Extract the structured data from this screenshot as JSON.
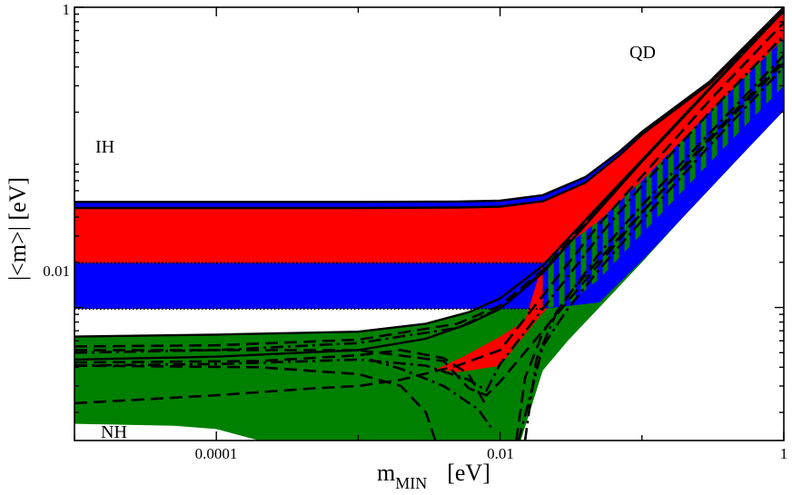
{
  "chart_data": {
    "type": "area",
    "xscale": "log",
    "yscale": "log",
    "xlim": [
      1e-05,
      1
    ],
    "ylim": [
      0.0013,
      1
    ],
    "xlabel": {
      "main": "m",
      "sub": "MIN",
      "unit": "[eV]"
    },
    "ylabel": "|<m>|  [eV]",
    "x_tick_labels": [
      {
        "value": 0.0001,
        "label": "0.0001"
      },
      {
        "value": 0.01,
        "label": "0.01"
      },
      {
        "value": 1,
        "label": "1"
      }
    ],
    "y_tick_labels": [
      {
        "value": 0.01,
        "label": "0.01"
      },
      {
        "value": 1,
        "label": "1"
      }
    ],
    "annotations": [
      {
        "text": "QD",
        "x": 0.06,
        "y": 0.58
      },
      {
        "text": "IH",
        "x": 1.6e-05,
        "y": 0.072
      },
      {
        "text": "NH",
        "x": 1.6e-05,
        "y": 0.00165
      }
    ],
    "bands": [
      {
        "id": "nh-green",
        "color": "#008000",
        "upper": [
          [
            1e-05,
            0.0064
          ],
          [
            0.0001,
            0.0066
          ],
          [
            0.001,
            0.0069
          ],
          [
            0.003,
            0.0078
          ],
          [
            0.006,
            0.0093
          ],
          [
            0.01,
            0.0115
          ],
          [
            0.02,
            0.019
          ],
          [
            0.05,
            0.048
          ],
          [
            0.1,
            0.096
          ],
          [
            0.3,
            0.29
          ],
          [
            1,
            0.96
          ]
        ],
        "lower": [
          [
            1,
            0.205
          ],
          [
            0.5,
            0.103
          ],
          [
            0.2,
            0.041
          ],
          [
            0.1,
            0.02
          ],
          [
            0.05,
            0.01
          ],
          [
            0.03,
            0.006
          ],
          [
            0.02,
            0.0038
          ],
          [
            0.014,
            0.0013
          ],
          [
            0.005,
            0.0013
          ],
          [
            0.0005,
            0.0013
          ],
          [
            0.0002,
            0.0013
          ],
          [
            0.0001,
            0.00155
          ],
          [
            5e-05,
            0.00163
          ],
          [
            1e-05,
            0.00168
          ]
        ]
      },
      {
        "id": "ih-blue",
        "color": "#0000ff",
        "upper": [
          [
            1e-05,
            0.0505
          ],
          [
            0.001,
            0.0505
          ],
          [
            0.005,
            0.0508
          ],
          [
            0.01,
            0.0515
          ],
          [
            0.02,
            0.056
          ],
          [
            0.04,
            0.074
          ],
          [
            0.07,
            0.11
          ],
          [
            0.1,
            0.148
          ],
          [
            0.3,
            0.32
          ],
          [
            1,
            1.0
          ]
        ],
        "lower": [
          [
            1,
            0.205
          ],
          [
            0.5,
            0.103
          ],
          [
            0.2,
            0.041
          ],
          [
            0.1,
            0.0205
          ],
          [
            0.05,
            0.0108
          ],
          [
            0.02,
            0.0098
          ],
          [
            0.01,
            0.0098
          ],
          [
            0.001,
            0.0098
          ],
          [
            1e-05,
            0.0098
          ]
        ]
      },
      {
        "id": "ih-red",
        "color": "#ff0000",
        "upper": [
          [
            1e-05,
            0.046
          ],
          [
            0.001,
            0.046
          ],
          [
            0.005,
            0.0463
          ],
          [
            0.01,
            0.047
          ],
          [
            0.02,
            0.051
          ],
          [
            0.04,
            0.068
          ],
          [
            0.07,
            0.104
          ],
          [
            0.1,
            0.142
          ],
          [
            0.3,
            0.31
          ],
          [
            1,
            0.97
          ]
        ],
        "lower": [
          [
            1,
            0.4
          ],
          [
            0.5,
            0.2
          ],
          [
            0.2,
            0.081
          ],
          [
            0.1,
            0.041
          ],
          [
            0.05,
            0.021
          ],
          [
            0.03,
            0.0135
          ],
          [
            0.02,
            0.0092
          ],
          [
            0.01,
            0.0041
          ],
          [
            0.005,
            0.0037
          ],
          [
            0.0036,
            0.0039
          ],
          [
            0.0055,
            0.0047
          ],
          [
            0.01,
            0.0064
          ],
          [
            0.015,
            0.0082
          ],
          [
            0.02,
            0.0198
          ],
          [
            0.01,
            0.0198
          ],
          [
            0.001,
            0.0198
          ],
          [
            1e-05,
            0.0198
          ]
        ]
      }
    ],
    "hatch": {
      "colors": [
        "#0000ff",
        "#008000"
      ],
      "upper": [
        [
          0.02,
          0.0198
        ],
        [
          0.05,
          0.038
        ],
        [
          0.1,
          0.07
        ],
        [
          0.3,
          0.2
        ],
        [
          1,
          0.62
        ]
      ],
      "lower": [
        [
          1,
          0.3
        ],
        [
          0.3,
          0.092
        ],
        [
          0.1,
          0.031
        ],
        [
          0.05,
          0.0155
        ],
        [
          0.03,
          0.0105
        ],
        [
          0.02,
          0.0098
        ]
      ]
    },
    "curves": [
      {
        "style": "solid",
        "points": [
          [
            1e-05,
            0.0505
          ],
          [
            0.001,
            0.0505
          ],
          [
            0.005,
            0.0508
          ],
          [
            0.01,
            0.0515
          ],
          [
            0.02,
            0.056
          ],
          [
            0.04,
            0.074
          ],
          [
            0.07,
            0.11
          ],
          [
            0.1,
            0.148
          ],
          [
            0.3,
            0.32
          ],
          [
            1,
            1.0
          ]
        ]
      },
      {
        "style": "solid",
        "points": [
          [
            1e-05,
            0.046
          ],
          [
            0.001,
            0.046
          ],
          [
            0.005,
            0.0463
          ],
          [
            0.01,
            0.047
          ],
          [
            0.02,
            0.051
          ],
          [
            0.04,
            0.068
          ],
          [
            0.07,
            0.104
          ],
          [
            0.1,
            0.142
          ],
          [
            0.3,
            0.31
          ],
          [
            1,
            0.97
          ]
        ]
      },
      {
        "style": "solid",
        "points": [
          [
            1e-05,
            0.0064
          ],
          [
            0.0001,
            0.0066
          ],
          [
            0.001,
            0.0069
          ],
          [
            0.003,
            0.0078
          ],
          [
            0.006,
            0.0093
          ],
          [
            0.01,
            0.0115
          ],
          [
            0.02,
            0.019
          ],
          [
            0.05,
            0.048
          ],
          [
            0.1,
            0.096
          ],
          [
            0.3,
            0.29
          ],
          [
            1,
            0.96
          ]
        ]
      },
      {
        "style": "solid",
        "points": [
          [
            1e-05,
            0.0045
          ],
          [
            0.0001,
            0.0047
          ],
          [
            0.001,
            0.0052
          ],
          [
            0.003,
            0.0062
          ],
          [
            0.006,
            0.0078
          ],
          [
            0.01,
            0.0098
          ],
          [
            0.02,
            0.017
          ],
          [
            0.05,
            0.045
          ],
          [
            0.1,
            0.094
          ],
          [
            0.3,
            0.285
          ],
          [
            1,
            0.95
          ]
        ]
      },
      {
        "style": "dotted",
        "points": [
          [
            1e-05,
            0.0198
          ],
          [
            0.02,
            0.0198
          ]
        ]
      },
      {
        "style": "dotted",
        "points": [
          [
            1e-05,
            0.0098
          ],
          [
            0.02,
            0.0098
          ]
        ]
      },
      {
        "style": "dashed",
        "points": [
          [
            1e-05,
            0.0055
          ],
          [
            0.0001,
            0.0056
          ],
          [
            0.001,
            0.0061
          ],
          [
            0.005,
            0.0078
          ],
          [
            0.01,
            0.0103
          ],
          [
            0.02,
            0.0178
          ],
          [
            0.05,
            0.046
          ],
          [
            0.1,
            0.095
          ],
          [
            0.3,
            0.288
          ],
          [
            1,
            0.955
          ]
        ]
      },
      {
        "style": "dashdot",
        "points": [
          [
            1e-05,
            0.005
          ],
          [
            0.0001,
            0.0052
          ],
          [
            0.001,
            0.0058
          ],
          [
            0.005,
            0.0073
          ],
          [
            0.01,
            0.0099
          ],
          [
            0.02,
            0.0173
          ],
          [
            0.05,
            0.0455
          ],
          [
            0.1,
            0.094
          ],
          [
            0.3,
            0.287
          ],
          [
            1,
            0.95
          ]
        ]
      },
      {
        "style": "dashed",
        "points": [
          [
            1e-05,
            0.0043
          ],
          [
            0.0002,
            0.0044
          ],
          [
            0.001,
            0.0048
          ],
          [
            0.002,
            0.0052
          ],
          [
            0.004,
            0.0046
          ],
          [
            0.006,
            0.0036
          ],
          [
            0.008,
            0.0022
          ]
        ]
      },
      {
        "style": "dashed",
        "points": [
          [
            1e-05,
            0.0041
          ],
          [
            0.0002,
            0.004
          ],
          [
            0.001,
            0.0036
          ],
          [
            0.002,
            0.003
          ],
          [
            0.003,
            0.002
          ],
          [
            0.0035,
            0.0013
          ]
        ]
      },
      {
        "style": "dashdot",
        "points": [
          [
            1e-05,
            0.0041
          ],
          [
            0.0001,
            0.0042
          ],
          [
            0.001,
            0.0045
          ],
          [
            0.003,
            0.0041
          ],
          [
            0.006,
            0.0033
          ],
          [
            0.008,
            0.0028
          ],
          [
            0.01,
            0.0042
          ],
          [
            0.02,
            0.0098
          ],
          [
            0.05,
            0.03
          ],
          [
            0.1,
            0.065
          ],
          [
            0.3,
            0.2
          ],
          [
            1,
            0.65
          ]
        ]
      },
      {
        "style": "dashed",
        "points": [
          [
            1e-05,
            0.0052
          ],
          [
            0.001,
            0.0052
          ],
          [
            0.004,
            0.0044
          ],
          [
            0.006,
            0.0029
          ],
          [
            0.008,
            0.0026
          ],
          [
            0.01,
            0.0032
          ],
          [
            0.03,
            0.011
          ],
          [
            0.1,
            0.043
          ],
          [
            0.3,
            0.13
          ],
          [
            1,
            0.43
          ]
        ]
      },
      {
        "style": "dashed",
        "points": [
          [
            1e-05,
            0.0023
          ],
          [
            0.0001,
            0.0026
          ],
          [
            0.0005,
            0.0029
          ],
          [
            0.001,
            0.003
          ],
          [
            0.002,
            0.0033
          ],
          [
            0.005,
            0.0041
          ],
          [
            0.01,
            0.0052
          ],
          [
            0.02,
            0.012
          ],
          [
            0.05,
            0.036
          ],
          [
            0.1,
            0.075
          ],
          [
            0.3,
            0.24
          ],
          [
            1,
            0.79
          ]
        ]
      },
      {
        "style": "dashdot",
        "points": [
          [
            0.0012,
            0.0045
          ],
          [
            0.002,
            0.0039
          ],
          [
            0.004,
            0.003
          ],
          [
            0.007,
            0.0021
          ],
          [
            0.009,
            0.0015
          ]
        ]
      },
      {
        "style": "dashdot",
        "points": [
          [
            0.0135,
            0.0013
          ],
          [
            0.016,
            0.0024
          ],
          [
            0.02,
            0.0055
          ],
          [
            0.03,
            0.0098
          ],
          [
            0.05,
            0.018
          ],
          [
            0.1,
            0.038
          ],
          [
            0.3,
            0.12
          ],
          [
            1,
            0.4
          ]
        ]
      },
      {
        "style": "dashed",
        "points": [
          [
            0.013,
            0.0013
          ],
          [
            0.015,
            0.0034
          ],
          [
            0.02,
            0.0068
          ],
          [
            0.03,
            0.012
          ],
          [
            0.05,
            0.021
          ],
          [
            0.1,
            0.043
          ],
          [
            0.3,
            0.135
          ],
          [
            1,
            0.45
          ]
        ]
      },
      {
        "style": "dashdot",
        "points": [
          [
            0.015,
            0.0013
          ],
          [
            0.018,
            0.0045
          ],
          [
            0.025,
            0.0093
          ],
          [
            0.05,
            0.023
          ],
          [
            0.1,
            0.048
          ],
          [
            0.3,
            0.145
          ],
          [
            1,
            0.48
          ]
        ]
      }
    ]
  }
}
